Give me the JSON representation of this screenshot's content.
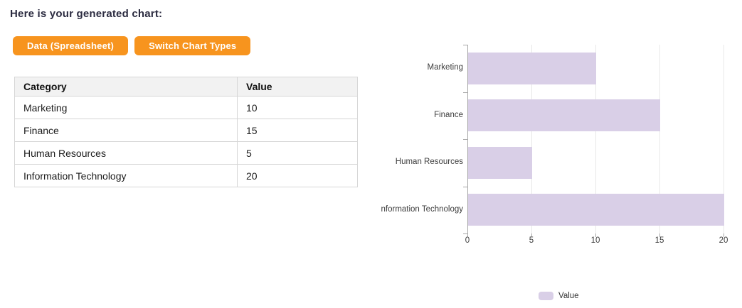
{
  "theme": {
    "accent_orange": "#f7941e",
    "bar_fill": "#d9cfe7"
  },
  "page": {
    "intro_text": "Here is your generated chart:"
  },
  "toolbar": {
    "buttons": [
      {
        "label": "Data (Spreadsheet)"
      },
      {
        "label": "Switch Chart Types"
      }
    ]
  },
  "table": {
    "headers": [
      "Category",
      "Value"
    ],
    "rows": [
      {
        "category": "Marketing",
        "value": "10"
      },
      {
        "category": "Finance",
        "value": "15"
      },
      {
        "category": "Human Resources",
        "value": "5"
      },
      {
        "category": "Information Technology",
        "value": "20"
      }
    ]
  },
  "chart": {
    "ytick_labels_shown": [
      "Marketing",
      "Finance",
      "Human Resources",
      "nformation Technology"
    ],
    "xtick_labels": [
      "0",
      "5",
      "10",
      "15",
      "20"
    ],
    "legend": {
      "label": "Value",
      "swatch_color": "#d9cfe7",
      "position": "bottom"
    }
  },
  "chart_data": {
    "type": "bar",
    "orientation": "horizontal",
    "categories": [
      "Marketing",
      "Finance",
      "Human Resources",
      "Information Technology"
    ],
    "series": [
      {
        "name": "Value",
        "values": [
          10,
          15,
          5,
          20
        ]
      }
    ],
    "title": "",
    "xlabel": "",
    "ylabel": "",
    "xlim": [
      0,
      20
    ],
    "xticks": [
      0,
      5,
      10,
      15,
      20
    ],
    "grid": true,
    "legend_position": "bottom"
  }
}
